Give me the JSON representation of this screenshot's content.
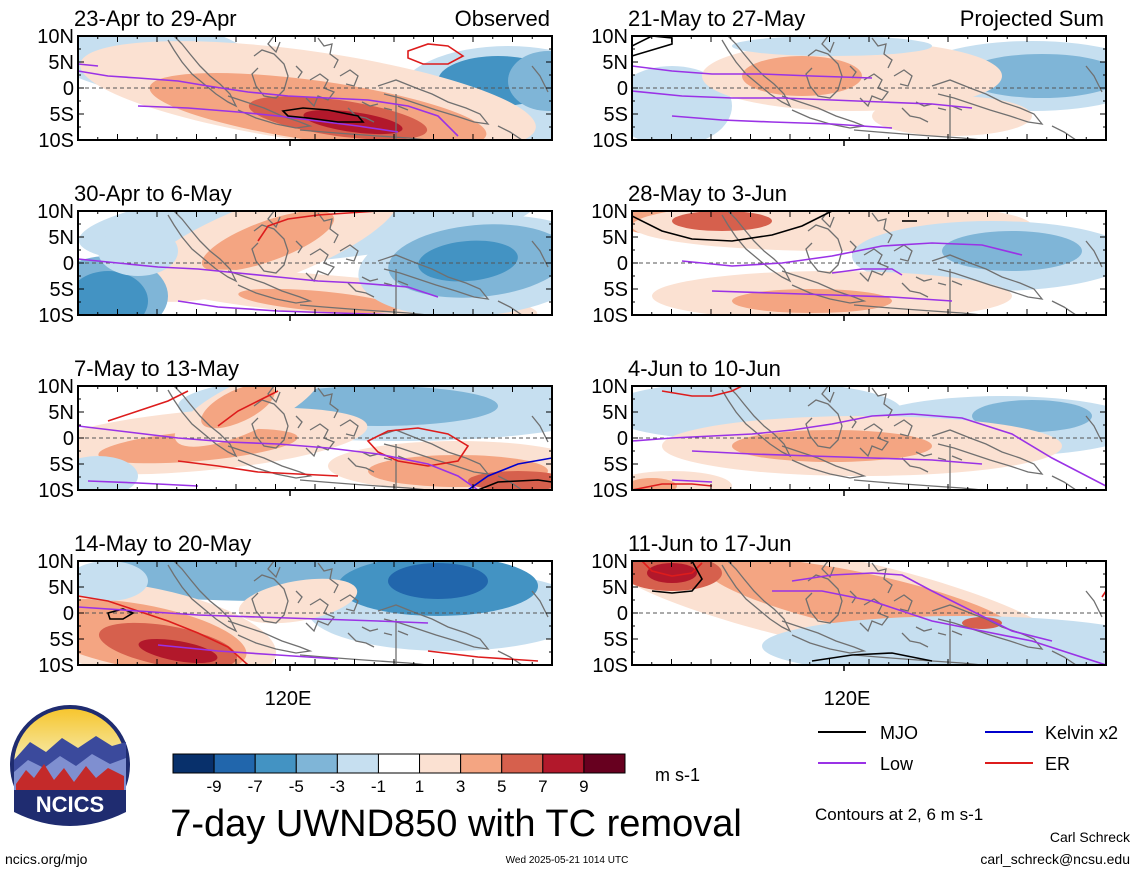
{
  "colors": {
    "scale": [
      "#08306b",
      "#2166ac",
      "#4393c3",
      "#7fb5d7",
      "#c6dff0",
      "#ffffff",
      "#fbe1d2",
      "#f4a582",
      "#d6604d",
      "#b2182b",
      "#67001f"
    ],
    "mjo": "#000000",
    "low": "#9a32e6",
    "kelvin": "#0000cc",
    "er": "#dd1c1c",
    "coast": "#707070"
  },
  "observed_label": "Observed",
  "projected_label": "Projected Sum",
  "lat_ticks": [
    "10N",
    "5N",
    "0",
    "5S",
    "10S"
  ],
  "lon_tick": "120E",
  "panels": [
    {
      "period": "23-Apr to 29-Apr",
      "column": "left",
      "row": 0
    },
    {
      "period": "30-Apr to 6-May",
      "column": "left",
      "row": 1
    },
    {
      "period": "7-May to 13-May",
      "column": "left",
      "row": 2
    },
    {
      "period": "14-May to 20-May",
      "column": "left",
      "row": 3
    },
    {
      "period": "21-May to 27-May",
      "column": "right",
      "row": 0
    },
    {
      "period": "28-May to 3-Jun",
      "column": "right",
      "row": 1
    },
    {
      "period": "4-Jun to 10-Jun",
      "column": "right",
      "row": 2
    },
    {
      "period": "11-Jun to 17-Jun",
      "column": "right",
      "row": 3
    }
  ],
  "colorbar": {
    "labels": [
      "-9",
      "-7",
      "-5",
      "-3",
      "-1",
      "1",
      "3",
      "5",
      "7",
      "9"
    ],
    "units": "m s-1"
  },
  "legend": {
    "mjo": "MJO",
    "kelvin": "Kelvin x2",
    "low": "Low",
    "er": "ER"
  },
  "contour_note": "Contours at 2, 6 m s-1",
  "title": "7-day UWND850 with TC removal",
  "logo_text": "NCICS",
  "footer": {
    "url": "ncics.org/mjo",
    "timestamp": "Wed 2025-05-21 1014 UTC",
    "author": "Carl Schreck",
    "email": "carl_schreck@ncsu.edu"
  }
}
